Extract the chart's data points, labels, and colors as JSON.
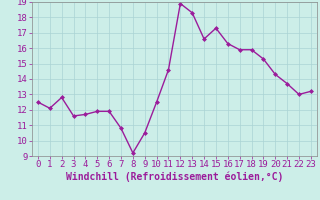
{
  "x": [
    0,
    1,
    2,
    3,
    4,
    5,
    6,
    7,
    8,
    9,
    10,
    11,
    12,
    13,
    14,
    15,
    16,
    17,
    18,
    19,
    20,
    21,
    22,
    23
  ],
  "y": [
    12.5,
    12.1,
    12.8,
    11.6,
    11.7,
    11.9,
    11.9,
    10.8,
    9.2,
    10.5,
    12.5,
    14.6,
    18.9,
    18.3,
    16.6,
    17.3,
    16.3,
    15.9,
    15.9,
    15.3,
    14.3,
    13.7,
    13.0,
    13.2
  ],
  "line_color": "#9b1c9b",
  "marker": "D",
  "marker_size": 2,
  "xlabel": "Windchill (Refroidissement éolien,°C)",
  "xlabel_fontsize": 7,
  "ylim": [
    9,
    19
  ],
  "xlim": [
    -0.5,
    23.5
  ],
  "yticks": [
    9,
    10,
    11,
    12,
    13,
    14,
    15,
    16,
    17,
    18,
    19
  ],
  "xticks": [
    0,
    1,
    2,
    3,
    4,
    5,
    6,
    7,
    8,
    9,
    10,
    11,
    12,
    13,
    14,
    15,
    16,
    17,
    18,
    19,
    20,
    21,
    22,
    23
  ],
  "grid_color": "#aad4d4",
  "bg_color": "#cceee8",
  "tick_color": "#9b1c9b",
  "tick_fontsize": 6.5,
  "line_width": 1.0
}
